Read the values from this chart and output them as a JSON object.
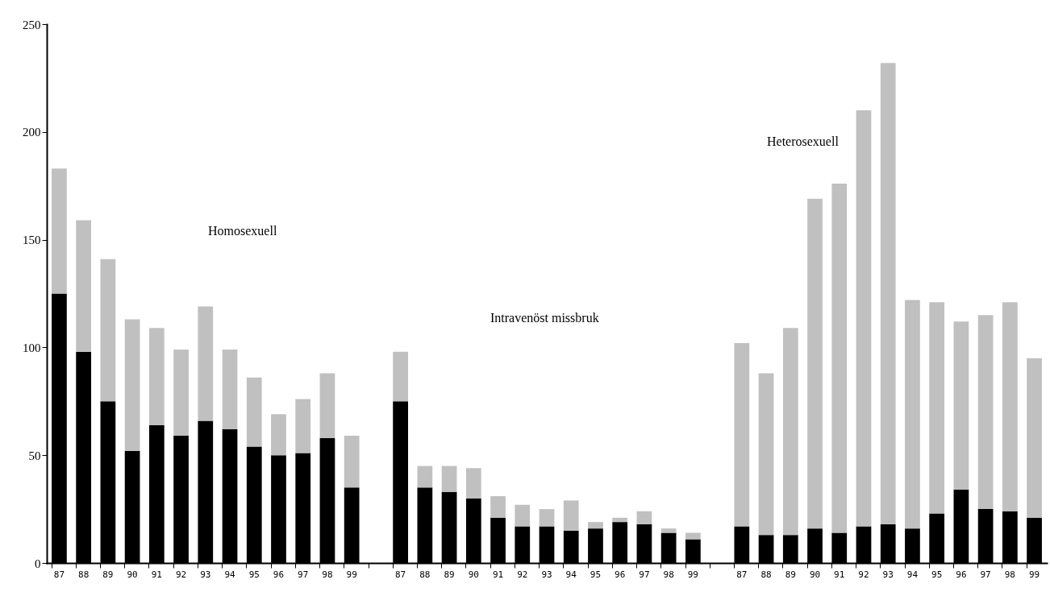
{
  "chart_data": {
    "type": "bar",
    "stacked": true,
    "categories": [
      "87",
      "88",
      "89",
      "90",
      "91",
      "92",
      "93",
      "94",
      "95",
      "96",
      "97",
      "98",
      "99",
      null,
      "87",
      "88",
      "89",
      "90",
      "91",
      "92",
      "93",
      "94",
      "95",
      "96",
      "97",
      "98",
      "99",
      null,
      "87",
      "88",
      "89",
      "90",
      "91",
      "92",
      "93",
      "94",
      "95",
      "96",
      "97",
      "98",
      "99"
    ],
    "series": [
      {
        "color": "#000000",
        "values": [
          125,
          98,
          75,
          52,
          64,
          59,
          66,
          62,
          54,
          50,
          51,
          58,
          35,
          null,
          75,
          35,
          33,
          30,
          21,
          17,
          17,
          15,
          16,
          19,
          18,
          14,
          11,
          null,
          17,
          13,
          13,
          16,
          14,
          17,
          18,
          16,
          23,
          34,
          25,
          24,
          21
        ]
      },
      {
        "color": "#c0c0c0",
        "values": [
          58,
          61,
          66,
          61,
          45,
          40,
          53,
          37,
          32,
          19,
          25,
          30,
          24,
          null,
          23,
          10,
          12,
          14,
          10,
          10,
          8,
          14,
          3,
          2,
          6,
          2,
          3,
          null,
          85,
          75,
          96,
          153,
          162,
          193,
          214,
          106,
          98,
          78,
          90,
          97,
          74
        ]
      }
    ],
    "ylim": [
      0,
      250
    ],
    "yticks": [
      0,
      50,
      100,
      150,
      200,
      250
    ],
    "grid": false,
    "legend": false,
    "annotations": [
      "Homosexuell",
      "Intravenöst missbruk",
      "Heterosexuell"
    ]
  }
}
